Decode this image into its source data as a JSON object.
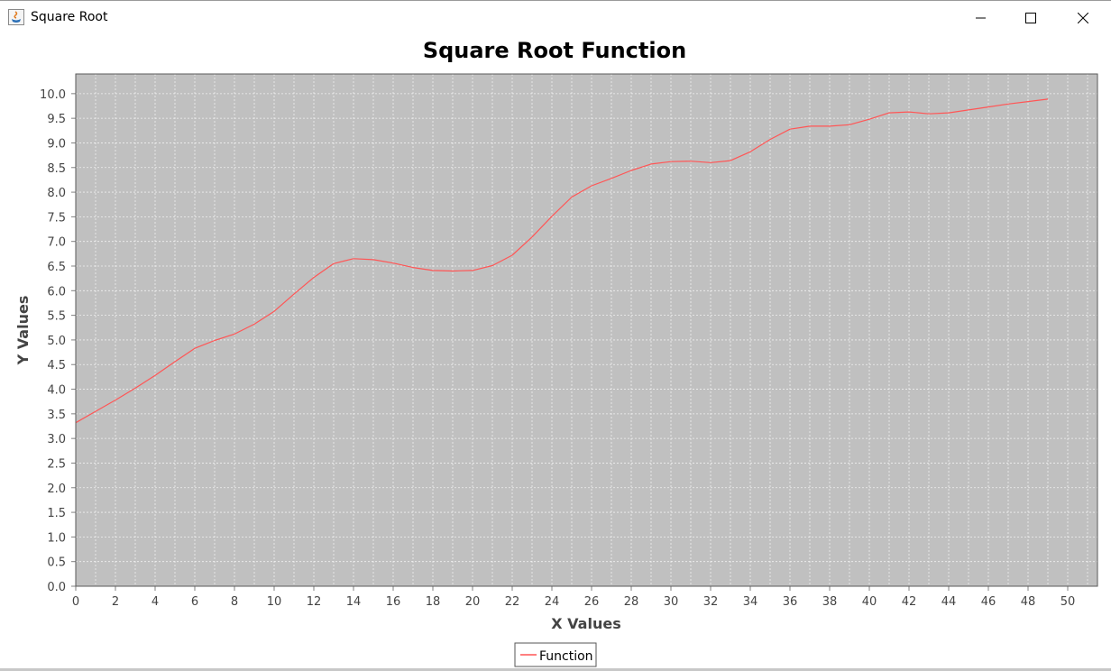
{
  "window": {
    "title": "Square Root",
    "app_icon": "java-icon",
    "controls": [
      "minimize-icon",
      "maximize-icon",
      "close-icon"
    ]
  },
  "chart_data": {
    "type": "line",
    "title": "Square Root Function",
    "xlabel": "X Values",
    "ylabel": "Y Values",
    "xlim": [
      0,
      51.5
    ],
    "ylim": [
      0,
      10.4
    ],
    "xticks": [
      0,
      2,
      4,
      6,
      8,
      10,
      12,
      14,
      16,
      18,
      20,
      22,
      24,
      26,
      28,
      30,
      32,
      34,
      36,
      38,
      40,
      42,
      44,
      46,
      48,
      50
    ],
    "yticks": [
      0.0,
      0.5,
      1.0,
      1.5,
      2.0,
      2.5,
      3.0,
      3.5,
      4.0,
      4.5,
      5.0,
      5.5,
      6.0,
      6.5,
      7.0,
      7.5,
      8.0,
      8.5,
      9.0,
      9.5,
      10.0
    ],
    "ytick_decimals": 1,
    "grid": true,
    "background_color": "#c0c0c0",
    "legend": "bottom",
    "series": [
      {
        "name": "Function",
        "color": "#ff5555",
        "x": [
          0,
          1,
          2,
          3,
          4,
          5,
          6,
          7,
          8,
          9,
          10,
          11,
          12,
          13,
          14,
          15,
          16,
          17,
          18,
          19,
          20,
          21,
          22,
          23,
          24,
          25,
          26,
          27,
          28,
          29,
          30,
          31,
          32,
          33,
          34,
          35,
          36,
          37,
          38,
          39,
          40,
          41,
          42,
          43,
          44,
          45,
          46,
          47,
          48,
          49
        ],
        "y": [
          3.32,
          3.55,
          3.78,
          4.02,
          4.28,
          4.56,
          4.83,
          4.99,
          5.12,
          5.32,
          5.58,
          5.93,
          6.27,
          6.55,
          6.65,
          6.63,
          6.56,
          6.47,
          6.41,
          6.4,
          6.41,
          6.51,
          6.72,
          7.09,
          7.51,
          7.9,
          8.13,
          8.28,
          8.44,
          8.57,
          8.62,
          8.63,
          8.6,
          8.64,
          8.82,
          9.07,
          9.28,
          9.34,
          9.34,
          9.37,
          9.48,
          9.61,
          9.63,
          9.59,
          9.61,
          9.67,
          9.73,
          9.79,
          9.84,
          9.89
        ]
      }
    ]
  }
}
